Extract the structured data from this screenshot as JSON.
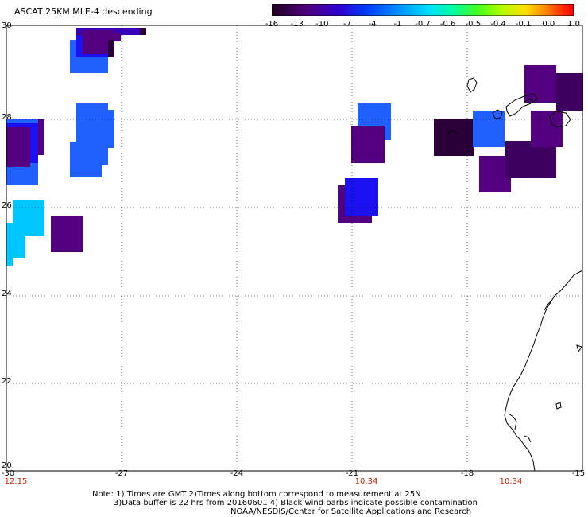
{
  "title": "ASCAT 25KM MLE-4 descending",
  "colorbar": {
    "labels": [
      "-16",
      "-13",
      "-10",
      "-7",
      "-4",
      "-1",
      "-0.7",
      "-0.6",
      "-0.5",
      "-0.4",
      "-0.1",
      "0.0",
      "1.0"
    ],
    "colors": [
      "#200020",
      "#500080",
      "#3000d0",
      "#0040ff",
      "#0090ff",
      "#00e0ff",
      "#00ffa0",
      "#40ff20",
      "#b0ff00",
      "#ffe000",
      "#ff9000",
      "#ff4000",
      "#ff0000"
    ]
  },
  "axes": {
    "lon_ticks": [
      "-30",
      "-27",
      "-24",
      "-21",
      "-18",
      "-15"
    ],
    "lat_ticks": [
      "30",
      "28",
      "26",
      "24",
      "22",
      "20"
    ]
  },
  "times": [
    "12:15",
    "10:34",
    "10:34"
  ],
  "notes": {
    "line1": "Note: 1) Times are GMT 2)Times along bottom correspond to measurement at 25N",
    "line2": "3)Data buffer is 22 hrs from 20160601 4) Black wind barbs indicate possible contamination",
    "line3": "NOAA/NESDIS/Center for Satellite Applications and Research"
  },
  "colors": {
    "deep_purple": "#2a0038",
    "purple": "#520080",
    "indigo": "#3a00b8",
    "blue": "#1a10f0",
    "azure": "#2060ff",
    "cyan": "#00c8ff",
    "coast": "#000000",
    "grid": "#000000",
    "time_text": "#cc2200"
  }
}
